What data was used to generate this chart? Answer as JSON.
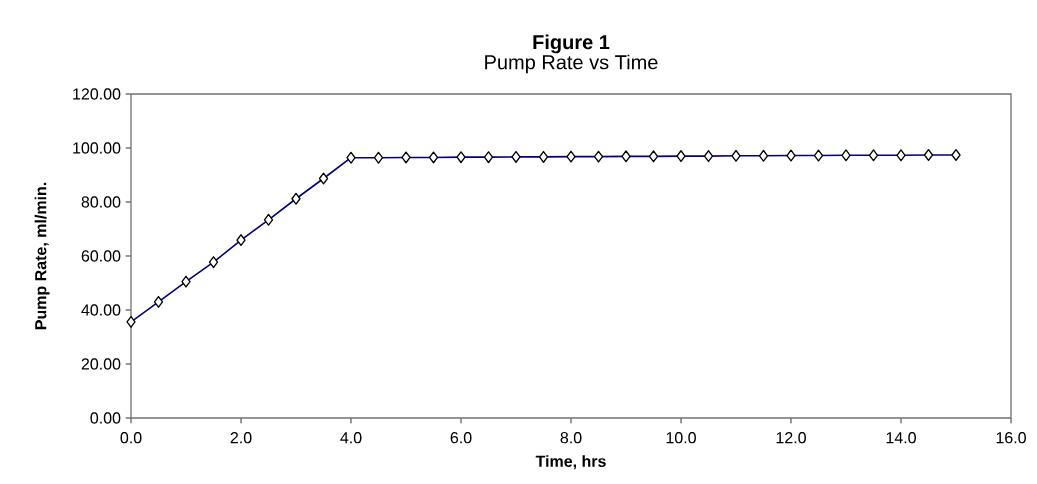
{
  "chart_data": {
    "type": "line",
    "title": "Figure 1",
    "subtitle": "Pump Rate vs Time",
    "xlabel": "Time, hrs",
    "ylabel": "Pump Rate, ml/min.",
    "x": [
      0,
      0.5,
      1,
      1.5,
      2,
      2.5,
      3,
      3.5,
      4,
      4.5,
      5,
      5.5,
      6,
      6.5,
      7,
      7.5,
      8,
      8.5,
      9,
      9.5,
      10,
      10.5,
      11,
      11.5,
      12,
      12.5,
      13,
      13.5,
      14,
      14.5,
      15
    ],
    "series": [
      {
        "color": "#000080",
        "values": [
          35.6,
          43.0,
          50.5,
          57.7,
          65.9,
          73.4,
          81.2,
          88.7,
          96.4,
          96.4,
          96.5,
          96.5,
          96.6,
          96.6,
          96.7,
          96.7,
          96.8,
          96.8,
          96.9,
          96.9,
          97.0,
          97.0,
          97.1,
          97.1,
          97.2,
          97.2,
          97.3,
          97.3,
          97.3,
          97.4,
          97.4
        ]
      }
    ],
    "xlim": [
      0,
      16
    ],
    "ylim": [
      0,
      120
    ],
    "xticks": [
      {
        "value": 0,
        "label": "0.0"
      },
      {
        "value": 2,
        "label": "2.0"
      },
      {
        "value": 4,
        "label": "4.0"
      },
      {
        "value": 6,
        "label": "6.0"
      },
      {
        "value": 8,
        "label": "8.0"
      },
      {
        "value": 10,
        "label": "10.0"
      },
      {
        "value": 12,
        "label": "12.0"
      },
      {
        "value": 14,
        "label": "14.0"
      },
      {
        "value": 16,
        "label": "16.0"
      }
    ],
    "yticks": [
      {
        "value": 0,
        "label": "0.00"
      },
      {
        "value": 20,
        "label": "20.00"
      },
      {
        "value": 40,
        "label": "40.00"
      },
      {
        "value": 60,
        "label": "60.00"
      },
      {
        "value": 80,
        "label": "80.00"
      },
      {
        "value": 100,
        "label": "100.00"
      },
      {
        "value": 120,
        "label": "120.00"
      }
    ],
    "grid": false,
    "marker": "diamond",
    "line_style": "solid"
  }
}
